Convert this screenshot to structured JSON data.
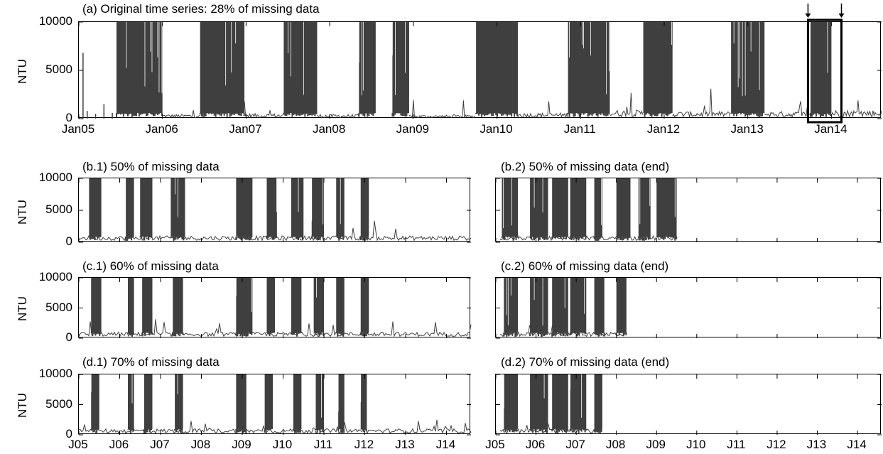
{
  "chart_data": [
    {
      "id": "a",
      "type": "area",
      "title": "(a) Original time series: 28% of missing data",
      "ylabel": "NTU",
      "ylim": [
        0,
        10000
      ],
      "yticks": [
        "0",
        "5000",
        "10000"
      ],
      "xlim": [
        2005.0,
        2014.6
      ],
      "xtick_positions": [
        2005,
        2006,
        2007,
        2008,
        2009,
        2010,
        2011,
        2012,
        2013,
        2014
      ],
      "xticks": [
        "Jan05",
        "Jan06",
        "Jan07",
        "Jan08",
        "Jan09",
        "Jan10",
        "Jan11",
        "Jan12",
        "Jan13",
        "Jan14"
      ],
      "series": [
        {
          "peaks": [
            [
              2005.0,
              300
            ],
            [
              2005.05,
              6800
            ],
            [
              2005.1,
              800
            ],
            [
              2005.2,
              500
            ],
            [
              2005.3,
              1500
            ],
            [
              2005.4,
              600
            ]
          ],
          "blocks": [
            [
              2005.45,
              2006.0
            ],
            [
              2006.45,
              2006.98
            ],
            [
              2007.45,
              2007.85
            ],
            [
              2008.35,
              2008.55
            ],
            [
              2008.75,
              2008.95
            ],
            [
              2009.75,
              2010.25
            ],
            [
              2010.85,
              2011.35
            ],
            [
              2011.75,
              2012.1
            ],
            [
              2012.8,
              2013.2
            ],
            [
              2013.75,
              2014.0
            ]
          ],
          "gaps": [
            [
              2008.55,
              2008.75
            ]
          ],
          "baseline": 800,
          "low": [
            [
              2006.0,
              2006.45,
              300
            ],
            [
              2006.98,
              2007.45,
              350
            ],
            [
              2007.85,
              2008.35,
              300
            ],
            [
              2008.95,
              2009.75,
              250
            ],
            [
              2010.25,
              2010.85,
              400
            ],
            [
              2011.35,
              2011.75,
              600
            ],
            [
              2012.1,
              2012.8,
              500
            ],
            [
              2013.2,
              2013.75,
              500
            ],
            [
              2014.0,
              2014.6,
              600
            ]
          ]
        }
      ],
      "annotations": [
        "box Sep13-Sep14",
        "arrow",
        "arrow"
      ]
    },
    {
      "id": "b1",
      "type": "area",
      "title": "(b.1) 50% of missing data",
      "ylabel": "NTU",
      "ylim": [
        0,
        10000
      ],
      "yticks": [
        "0",
        "5000",
        "10000"
      ],
      "xlim": [
        2005.0,
        2014.6
      ],
      "series": [
        {
          "blocks": [
            [
              2005.25,
              2005.55
            ],
            [
              2006.15,
              2006.35
            ],
            [
              2006.5,
              2006.8
            ],
            [
              2007.25,
              2007.6
            ],
            [
              2008.85,
              2009.25
            ],
            [
              2009.6,
              2009.85
            ],
            [
              2010.2,
              2010.5
            ],
            [
              2010.7,
              2011.0
            ],
            [
              2011.3,
              2011.5
            ],
            [
              2011.9,
              2012.1
            ]
          ]
        }
      ]
    },
    {
      "id": "b2",
      "type": "area",
      "title": "(b.2) 50% of missing data (end)",
      "ylim": [
        0,
        10000
      ],
      "xlim": [
        2005.0,
        2014.6
      ],
      "series": [
        {
          "blocks": [
            [
              2005.15,
              2005.55
            ],
            [
              2005.85,
              2006.3
            ],
            [
              2006.4,
              2006.8
            ],
            [
              2006.85,
              2007.25
            ],
            [
              2007.45,
              2007.65
            ],
            [
              2008.0,
              2008.35
            ],
            [
              2008.55,
              2008.85
            ],
            [
              2009.0,
              2009.5
            ]
          ]
        }
      ]
    },
    {
      "id": "c1",
      "type": "area",
      "title": "(c.1) 60% of missing data",
      "ylabel": "NTU",
      "ylim": [
        0,
        10000
      ],
      "yticks": [
        "0",
        "5000",
        "10000"
      ],
      "xlim": [
        2005.0,
        2014.6
      ],
      "series": [
        {
          "blocks": [
            [
              2005.3,
              2005.55
            ],
            [
              2006.2,
              2006.35
            ],
            [
              2006.55,
              2006.8
            ],
            [
              2007.3,
              2007.55
            ],
            [
              2008.85,
              2009.25
            ],
            [
              2009.6,
              2009.8
            ],
            [
              2010.2,
              2010.45
            ],
            [
              2010.75,
              2011.0
            ],
            [
              2011.3,
              2011.5
            ],
            [
              2011.9,
              2012.1
            ]
          ]
        }
      ]
    },
    {
      "id": "c2",
      "type": "area",
      "title": "(c.2) 60% of missing data (end)",
      "ylim": [
        0,
        10000
      ],
      "xlim": [
        2005.0,
        2014.6
      ],
      "series": [
        {
          "blocks": [
            [
              2005.2,
              2005.55
            ],
            [
              2005.85,
              2006.3
            ],
            [
              2006.4,
              2006.8
            ],
            [
              2006.85,
              2007.25
            ],
            [
              2007.45,
              2007.7
            ],
            [
              2008.0,
              2008.25
            ]
          ]
        }
      ]
    },
    {
      "id": "d1",
      "type": "area",
      "title": "(d.1) 70% of missing data",
      "ylabel": "NTU",
      "ylim": [
        0,
        10000
      ],
      "yticks": [
        "0",
        "5000",
        "10000"
      ],
      "xlim": [
        2005.0,
        2014.6
      ],
      "xtick_positions": [
        2005,
        2006,
        2007,
        2008,
        2009,
        2010,
        2011,
        2012,
        2013,
        2014
      ],
      "xticks": [
        "J05",
        "J06",
        "J07",
        "J08",
        "J09",
        "J10",
        "J11",
        "J12",
        "J13",
        "J14"
      ],
      "series": [
        {
          "blocks": [
            [
              2005.3,
              2005.5
            ],
            [
              2006.2,
              2006.35
            ],
            [
              2006.6,
              2006.8
            ],
            [
              2007.35,
              2007.55
            ],
            [
              2008.85,
              2009.1
            ],
            [
              2009.55,
              2009.75
            ],
            [
              2010.25,
              2010.45
            ],
            [
              2010.8,
              2011.0
            ],
            [
              2011.35,
              2011.5
            ],
            [
              2011.9,
              2012.05
            ]
          ]
        }
      ]
    },
    {
      "id": "d2",
      "type": "area",
      "title": "(d.2) 70% of missing data (end)",
      "ylim": [
        0,
        10000
      ],
      "xlim": [
        2005.0,
        2014.6
      ],
      "xtick_positions": [
        2005,
        2006,
        2007,
        2008,
        2009,
        2010,
        2011,
        2012,
        2013,
        2014
      ],
      "xticks": [
        "J05",
        "J06",
        "J07",
        "J08",
        "J09",
        "J10",
        "J11",
        "J12",
        "J13",
        "J14"
      ],
      "series": [
        {
          "blocks": [
            [
              2005.2,
              2005.55
            ],
            [
              2005.85,
              2006.3
            ],
            [
              2006.4,
              2006.8
            ],
            [
              2006.85,
              2007.25
            ],
            [
              2007.45,
              2007.65
            ]
          ]
        }
      ]
    }
  ],
  "colors": {
    "fill": "#3f3f3f",
    "axis": "#000000"
  }
}
